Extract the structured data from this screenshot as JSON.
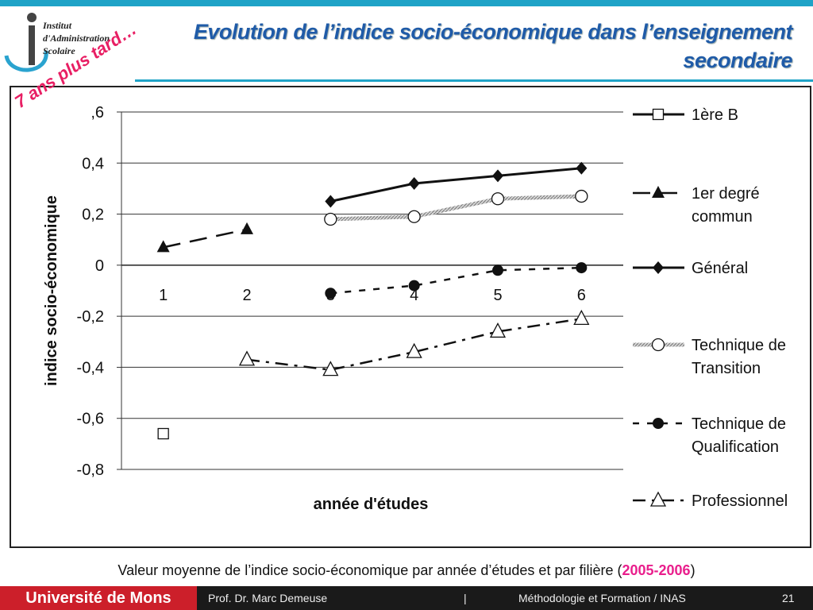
{
  "header": {
    "logo_lines": [
      "Institut",
      "d'Administration",
      "Scolaire"
    ],
    "title": "Evolution de l’indice socio-économique dans l’enseignement secondaire",
    "stamp": "7 ans plus tard…"
  },
  "colors": {
    "accent": "#1fa3c7",
    "title": "#1f5ba8",
    "stamp": "#e81e63",
    "university": "#cc1f2a",
    "highlight": "#e91e8c"
  },
  "chart_data": {
    "type": "line",
    "title": "",
    "xlabel": "année d'études",
    "ylabel": "indice socio-économique",
    "ylim": [
      -0.8,
      0.6
    ],
    "yticks": [
      0.6,
      0.4,
      0.2,
      0,
      -0.2,
      -0.4,
      -0.6,
      -0.8
    ],
    "ytick_labels": [
      ",6",
      "0,4",
      "0,2",
      "0",
      "-0,2",
      "-0,4",
      "-0,6",
      "-0,8"
    ],
    "x": [
      1,
      2,
      3,
      4,
      5,
      6
    ],
    "xtick_labels": [
      "1",
      "2",
      "3",
      "4",
      "5",
      "6"
    ],
    "grid": true,
    "legend_position": "right",
    "series": [
      {
        "name": "1ère B",
        "marker": "square-open",
        "line": "solid",
        "points": [
          [
            1,
            -0.66
          ]
        ]
      },
      {
        "name": "1er degré commun",
        "marker": "triangle-filled",
        "line": "long-dash",
        "points": [
          [
            1,
            0.07
          ],
          [
            2,
            0.14
          ]
        ]
      },
      {
        "name": "Général",
        "marker": "diamond-filled",
        "line": "solid",
        "points": [
          [
            3,
            0.25
          ],
          [
            4,
            0.32
          ],
          [
            5,
            0.35
          ],
          [
            6,
            0.38
          ]
        ]
      },
      {
        "name": "Technique de Transition",
        "marker": "circle-open",
        "line": "hatched",
        "points": [
          [
            3,
            0.18
          ],
          [
            4,
            0.19
          ],
          [
            5,
            0.26
          ],
          [
            6,
            0.27
          ]
        ]
      },
      {
        "name": "Technique de Qualification",
        "marker": "circle-filled",
        "line": "dash",
        "points": [
          [
            3,
            -0.11
          ],
          [
            4,
            -0.08
          ],
          [
            5,
            -0.02
          ],
          [
            6,
            -0.01
          ]
        ]
      },
      {
        "name": "Professionnel",
        "marker": "triangle-open",
        "line": "dash-dot",
        "points": [
          [
            2,
            -0.37
          ],
          [
            3,
            -0.41
          ],
          [
            4,
            -0.34
          ],
          [
            5,
            -0.26
          ],
          [
            6,
            -0.21
          ]
        ]
      }
    ]
  },
  "caption": {
    "text": "Valeur moyenne de l’indice socio-économique par année d’études et par filière (",
    "highlight": "2005-2006",
    "end": ")"
  },
  "footer": {
    "university": "Université de Mons",
    "author": "Prof. Dr. Marc Demeuse",
    "separator": "|",
    "course": "Méthodologie et Formation / INAS",
    "page": "21"
  }
}
